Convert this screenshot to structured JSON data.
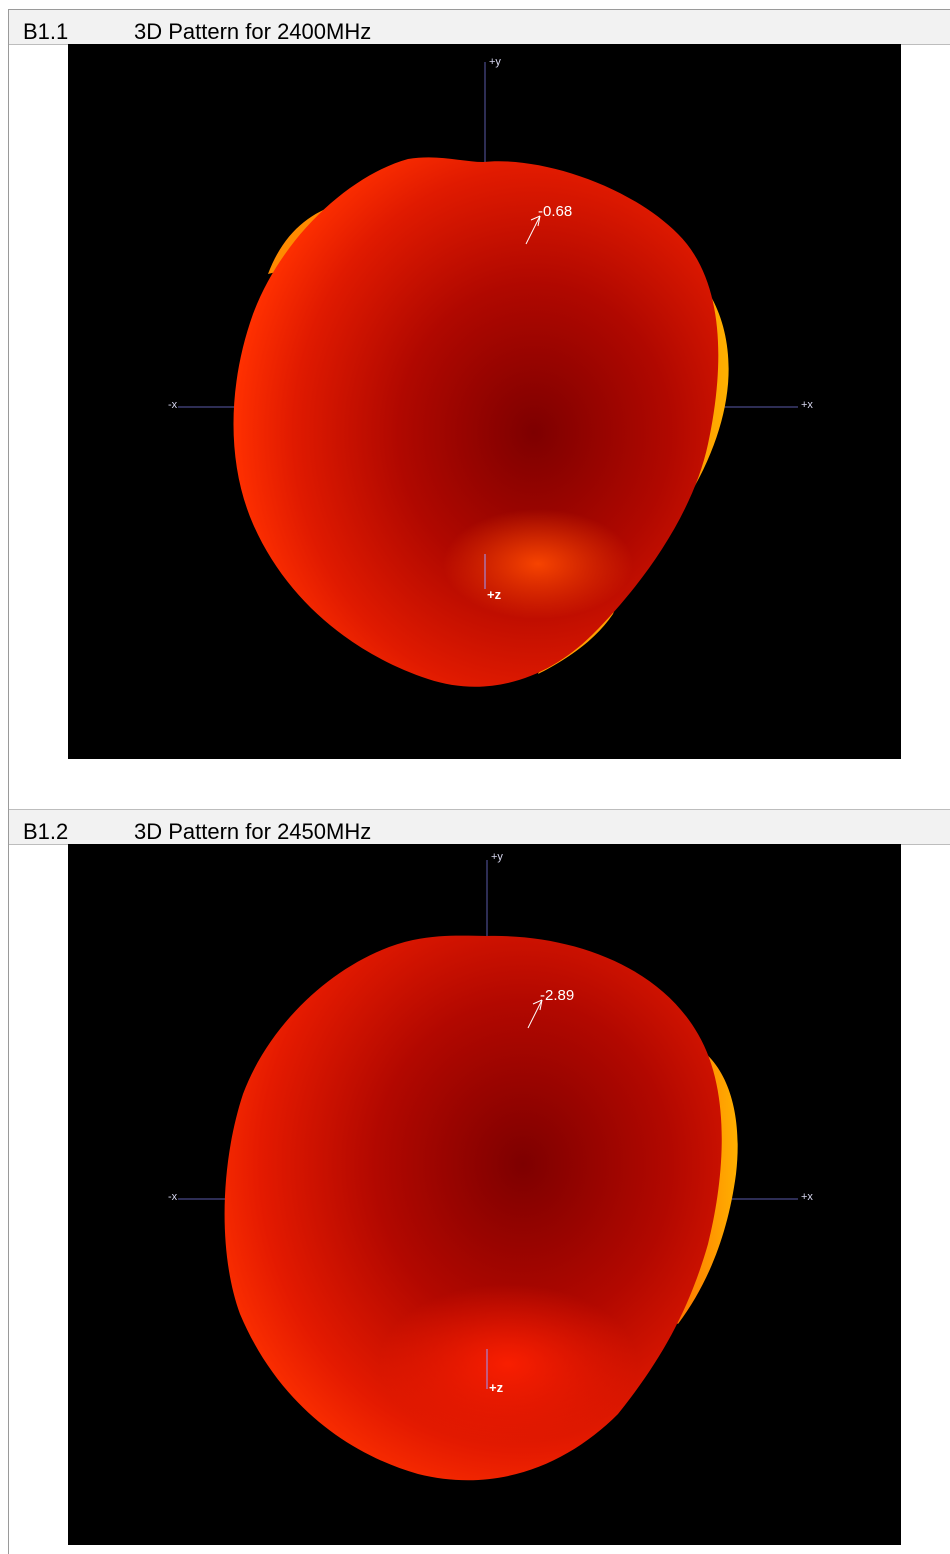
{
  "sections": [
    {
      "number": "B1.1",
      "title": "3D Pattern for 2400MHz",
      "peak_label": "-0.68",
      "axes": {
        "plus_y": "+y",
        "minus_x": "-x",
        "plus_x": "+x",
        "plus_z": "+z"
      }
    },
    {
      "number": "B1.2",
      "title": "3D Pattern for 2450MHz",
      "peak_label": "-2.89",
      "axes": {
        "plus_y": "+y",
        "minus_x": "-x",
        "plus_x": "+x",
        "plus_z": "+z"
      }
    }
  ],
  "colors": {
    "background": "#000000",
    "axis": "#5a5aa8",
    "lobe_dark": "#8a0000",
    "lobe_mid": "#d01000",
    "lobe_bright": "#ff3a00",
    "lobe_edge": "#ffa800"
  }
}
